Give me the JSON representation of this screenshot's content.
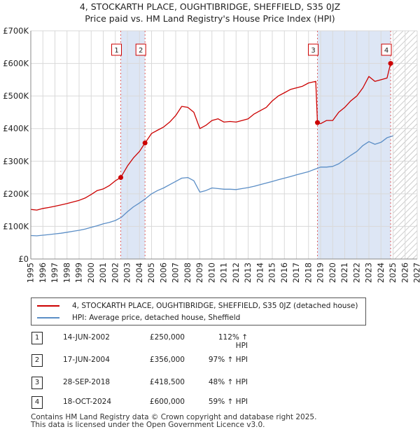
{
  "title_line1": "4, STOCKARTH PLACE, OUGHTIBRIDGE, SHEFFIELD, S35 0JZ",
  "title_line2": "Price paid vs. HM Land Registry's House Price Index (HPI)",
  "legend": {
    "property": "4, STOCKARTH PLACE, OUGHTIBRIDGE, SHEFFIELD, S35 0JZ (detached house)",
    "hpi": "HPI: Average price, detached house, Sheffield"
  },
  "colors": {
    "property": "#cc0000",
    "hpi": "#5b8ec6",
    "shade": "#dde6f5",
    "grid": "#d9d9d9",
    "vline": "#e06060"
  },
  "sales": [
    {
      "num": "1",
      "date": "14-JUN-2002",
      "price": "£250,000",
      "hpi": "112% ↑ HPI"
    },
    {
      "num": "2",
      "date": "17-JUN-2004",
      "price": "£356,000",
      "hpi": "97% ↑ HPI"
    },
    {
      "num": "3",
      "date": "28-SEP-2018",
      "price": "£418,500",
      "hpi": "48% ↑ HPI"
    },
    {
      "num": "4",
      "date": "18-OCT-2024",
      "price": "£600,000",
      "hpi": "59% ↑ HPI"
    }
  ],
  "footer": {
    "line1": "Contains HM Land Registry data © Crown copyright and database right 2025.",
    "line2": "This data is licensed under the Open Government Licence v3.0."
  },
  "chart_data": {
    "type": "line",
    "xlim": [
      1995,
      2027
    ],
    "ylim": [
      0,
      700000
    ],
    "x_ticks": [
      1995,
      1996,
      1997,
      1998,
      1999,
      2000,
      2001,
      2002,
      2003,
      2004,
      2005,
      2006,
      2007,
      2008,
      2009,
      2010,
      2011,
      2012,
      2013,
      2014,
      2015,
      2016,
      2017,
      2018,
      2019,
      2020,
      2021,
      2022,
      2023,
      2024,
      2025,
      2026,
      2027
    ],
    "y_ticks": [
      {
        "value": 0,
        "label": "£0"
      },
      {
        "value": 100000,
        "label": "£100K"
      },
      {
        "value": 200000,
        "label": "£200K"
      },
      {
        "value": 300000,
        "label": "£300K"
      },
      {
        "value": 400000,
        "label": "£400K"
      },
      {
        "value": 500000,
        "label": "£500K"
      },
      {
        "value": 600000,
        "label": "£600K"
      },
      {
        "value": 700000,
        "label": "£700K"
      }
    ],
    "shaded_ranges": [
      [
        2002.45,
        2004.46
      ],
      [
        2018.74,
        2024.8
      ]
    ],
    "hatched_from": 2025.0,
    "markers": [
      {
        "label": "1",
        "x": 2002.45,
        "y": 250000
      },
      {
        "label": "2",
        "x": 2004.46,
        "y": 356000
      },
      {
        "label": "3",
        "x": 2018.74,
        "y": 418500
      },
      {
        "label": "4",
        "x": 2024.8,
        "y": 600000
      }
    ],
    "series": [
      {
        "name": "4, STOCKARTH PLACE, OUGHTIBRIDGE, SHEFFIELD, S35 0JZ (detached house)",
        "x": [
          1995,
          1995.5,
          1996,
          1996.5,
          1997,
          1997.5,
          1998,
          1998.5,
          1999,
          1999.5,
          2000,
          2000.5,
          2001,
          2001.5,
          2002,
          2002.45,
          2003,
          2003.5,
          2004,
          2004.46,
          2005,
          2005.5,
          2006,
          2006.5,
          2007,
          2007.5,
          2008,
          2008.5,
          2009,
          2009.5,
          2010,
          2010.5,
          2011,
          2011.5,
          2012,
          2012.5,
          2013,
          2013.5,
          2014,
          2014.5,
          2015,
          2015.5,
          2016,
          2016.5,
          2017,
          2017.5,
          2018,
          2018.6,
          2018.74,
          2019,
          2019.5,
          2020,
          2020.5,
          2021,
          2021.5,
          2022,
          2022.5,
          2023,
          2023.5,
          2024,
          2024.5,
          2024.8,
          2025
        ],
        "y": [
          152000,
          150000,
          155000,
          158000,
          162000,
          166000,
          170000,
          175000,
          180000,
          187000,
          198000,
          210000,
          215000,
          225000,
          240000,
          250000,
          285000,
          310000,
          330000,
          356000,
          385000,
          395000,
          405000,
          420000,
          440000,
          468000,
          465000,
          450000,
          400000,
          410000,
          425000,
          430000,
          420000,
          422000,
          420000,
          425000,
          430000,
          445000,
          455000,
          465000,
          485000,
          500000,
          510000,
          520000,
          525000,
          530000,
          540000,
          545000,
          418500,
          415000,
          425000,
          425000,
          450000,
          465000,
          485000,
          500000,
          525000,
          560000,
          545000,
          550000,
          555000,
          600000,
          602000
        ]
      },
      {
        "name": "HPI: Average price, detached house, Sheffield",
        "x": [
          1995,
          1995.5,
          1996,
          1996.5,
          1997,
          1997.5,
          1998,
          1998.5,
          1999,
          1999.5,
          2000,
          2000.5,
          2001,
          2001.5,
          2002,
          2002.5,
          2003,
          2003.5,
          2004,
          2004.5,
          2005,
          2005.5,
          2006,
          2006.5,
          2007,
          2007.5,
          2008,
          2008.5,
          2009,
          2009.5,
          2010,
          2010.5,
          2011,
          2011.5,
          2012,
          2012.5,
          2013,
          2013.5,
          2014,
          2014.5,
          2015,
          2015.5,
          2016,
          2016.5,
          2017,
          2017.5,
          2018,
          2018.5,
          2019,
          2019.5,
          2020,
          2020.5,
          2021,
          2021.5,
          2022,
          2022.5,
          2023,
          2023.5,
          2024,
          2024.5,
          2025
        ],
        "y": [
          72000,
          71000,
          73000,
          75000,
          77000,
          79000,
          82000,
          85000,
          88000,
          92000,
          97000,
          102000,
          108000,
          112000,
          118000,
          128000,
          145000,
          160000,
          172000,
          185000,
          200000,
          210000,
          218000,
          228000,
          238000,
          248000,
          250000,
          240000,
          205000,
          210000,
          218000,
          216000,
          214000,
          214000,
          213000,
          216000,
          219000,
          223000,
          228000,
          233000,
          238000,
          243000,
          248000,
          253000,
          258000,
          263000,
          268000,
          275000,
          282000,
          282000,
          284000,
          292000,
          305000,
          318000,
          330000,
          348000,
          360000,
          352000,
          358000,
          372000,
          378000
        ]
      }
    ]
  }
}
